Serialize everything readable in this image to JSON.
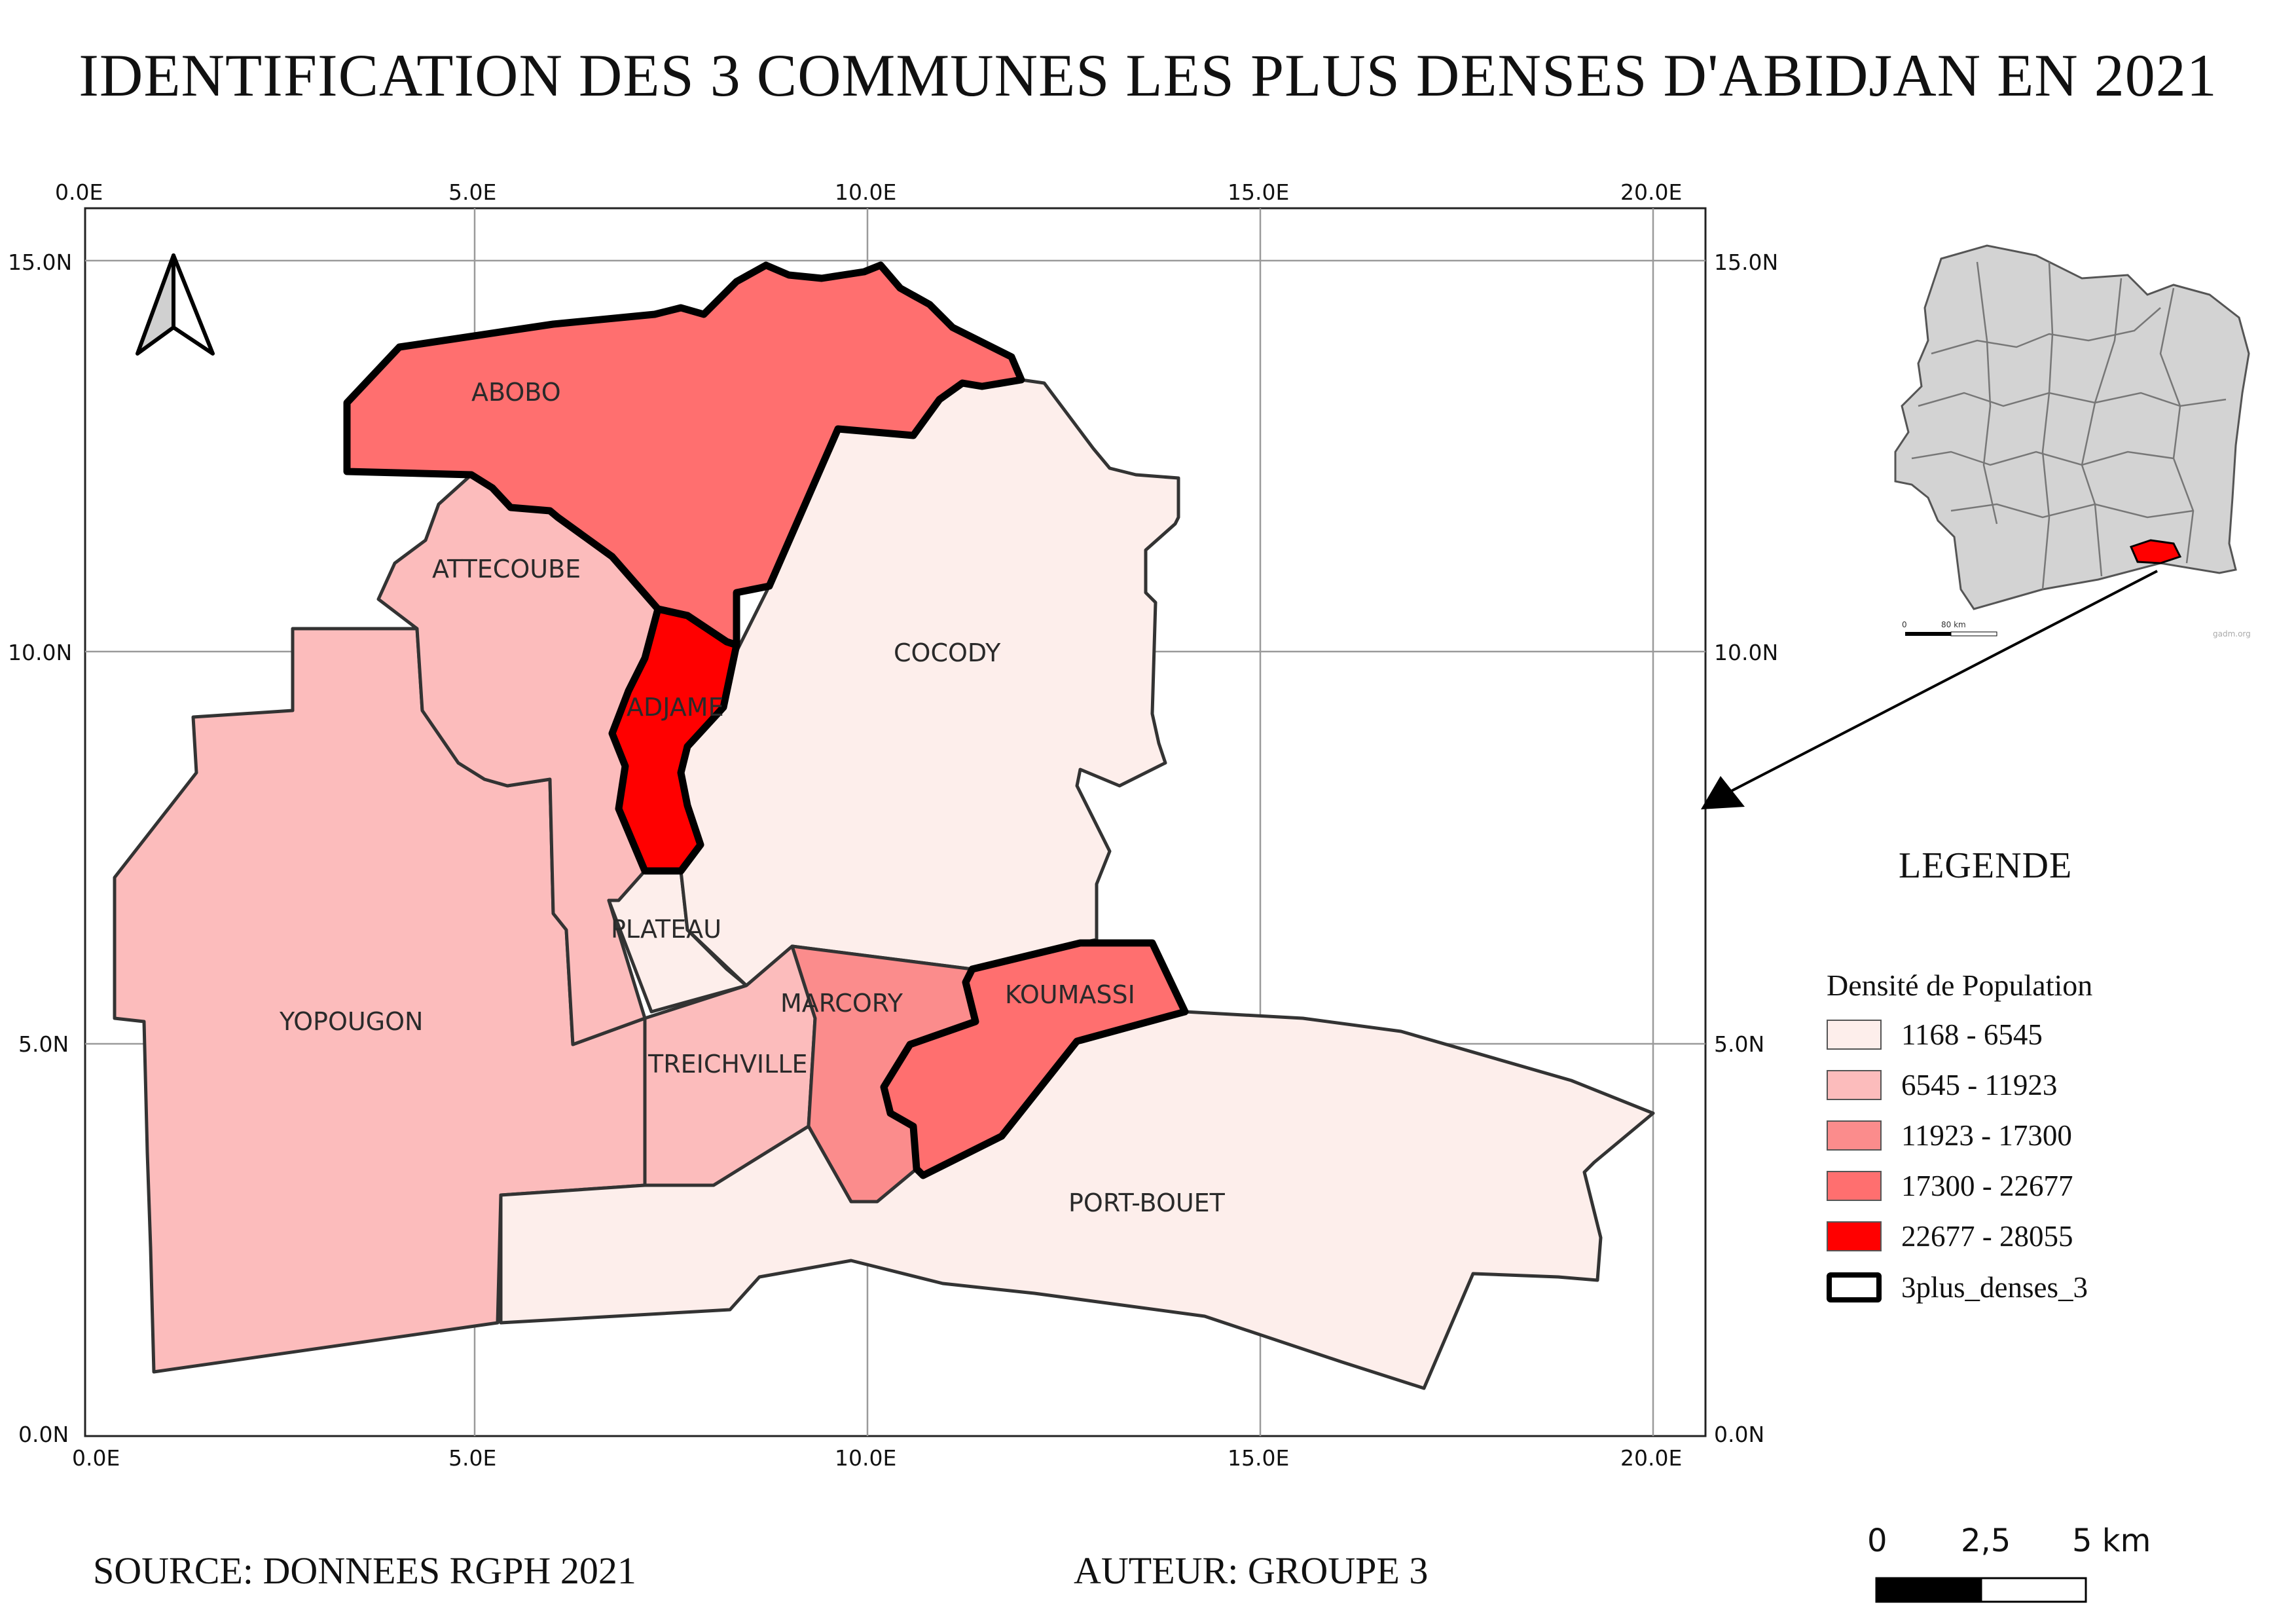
{
  "title": "IDENTIFICATION DES 3 COMMUNES LES PLUS DENSES D'ABIDJAN EN 2021",
  "grid": {
    "x_labels": [
      "0.0E",
      "5.0E",
      "10.0E",
      "15.0E",
      "20.0E"
    ],
    "y_labels": [
      "15.0N",
      "10.0N",
      "5.0N",
      "0.0N"
    ]
  },
  "communes": [
    {
      "name": "ABOBO",
      "density_class": "17300 - 22677",
      "color": "#ff6f6f",
      "top3": true
    },
    {
      "name": "ATTECOUBE",
      "density_class": "6545 - 11923",
      "color": "#fcbcbc",
      "top3": false
    },
    {
      "name": "ADJAME",
      "density_class": "22677 - 28055",
      "color": "#ff0000",
      "top3": true
    },
    {
      "name": "COCODY",
      "density_class": "1168 - 6545",
      "color": "#fdeeeb",
      "top3": false
    },
    {
      "name": "PLATEAU",
      "density_class": "1168 - 6545",
      "color": "#fdeeeb",
      "top3": false
    },
    {
      "name": "YOPOUGON",
      "density_class": "6545 - 11923",
      "color": "#fcbcbc",
      "top3": false
    },
    {
      "name": "MARCORY",
      "density_class": "11923 - 17300",
      "color": "#fb8c8c",
      "top3": false
    },
    {
      "name": "KOUMASSI",
      "density_class": "17300 - 22677",
      "color": "#ff6f6f",
      "top3": true
    },
    {
      "name": "TREICHVILLE",
      "density_class": "6545 - 11923",
      "color": "#fcbcbc",
      "top3": false
    },
    {
      "name": "PORT-BOUET",
      "density_class": "1168 - 6545",
      "color": "#fdeeeb",
      "top3": false
    }
  ],
  "legend": {
    "title": "LEGENDE",
    "subtitle": "Densité de Population",
    "items": [
      {
        "label": "1168 - 6545",
        "color": "#fdeeeb"
      },
      {
        "label": "6545 - 11923",
        "color": "#fcbcbc"
      },
      {
        "label": "11923 - 17300",
        "color": "#fb8c8c"
      },
      {
        "label": "17300 - 22677",
        "color": "#ff6f6f"
      },
      {
        "label": "22677 - 28055",
        "color": "#ff0000"
      }
    ],
    "outline_label": "3plus_denses_3"
  },
  "inset": {
    "scale_start": "0",
    "scale_end": "80 km",
    "credit": "gadm.org"
  },
  "scale_bar": {
    "labels": [
      "0",
      "2,5",
      "5 km"
    ]
  },
  "footer": {
    "source": "SOURCE: DONNEES RGPH 2021",
    "author": "AUTEUR: GROUPE 3"
  },
  "icons": {
    "north_arrow": "north-arrow-icon",
    "locator_arrow": "arrow-icon"
  }
}
